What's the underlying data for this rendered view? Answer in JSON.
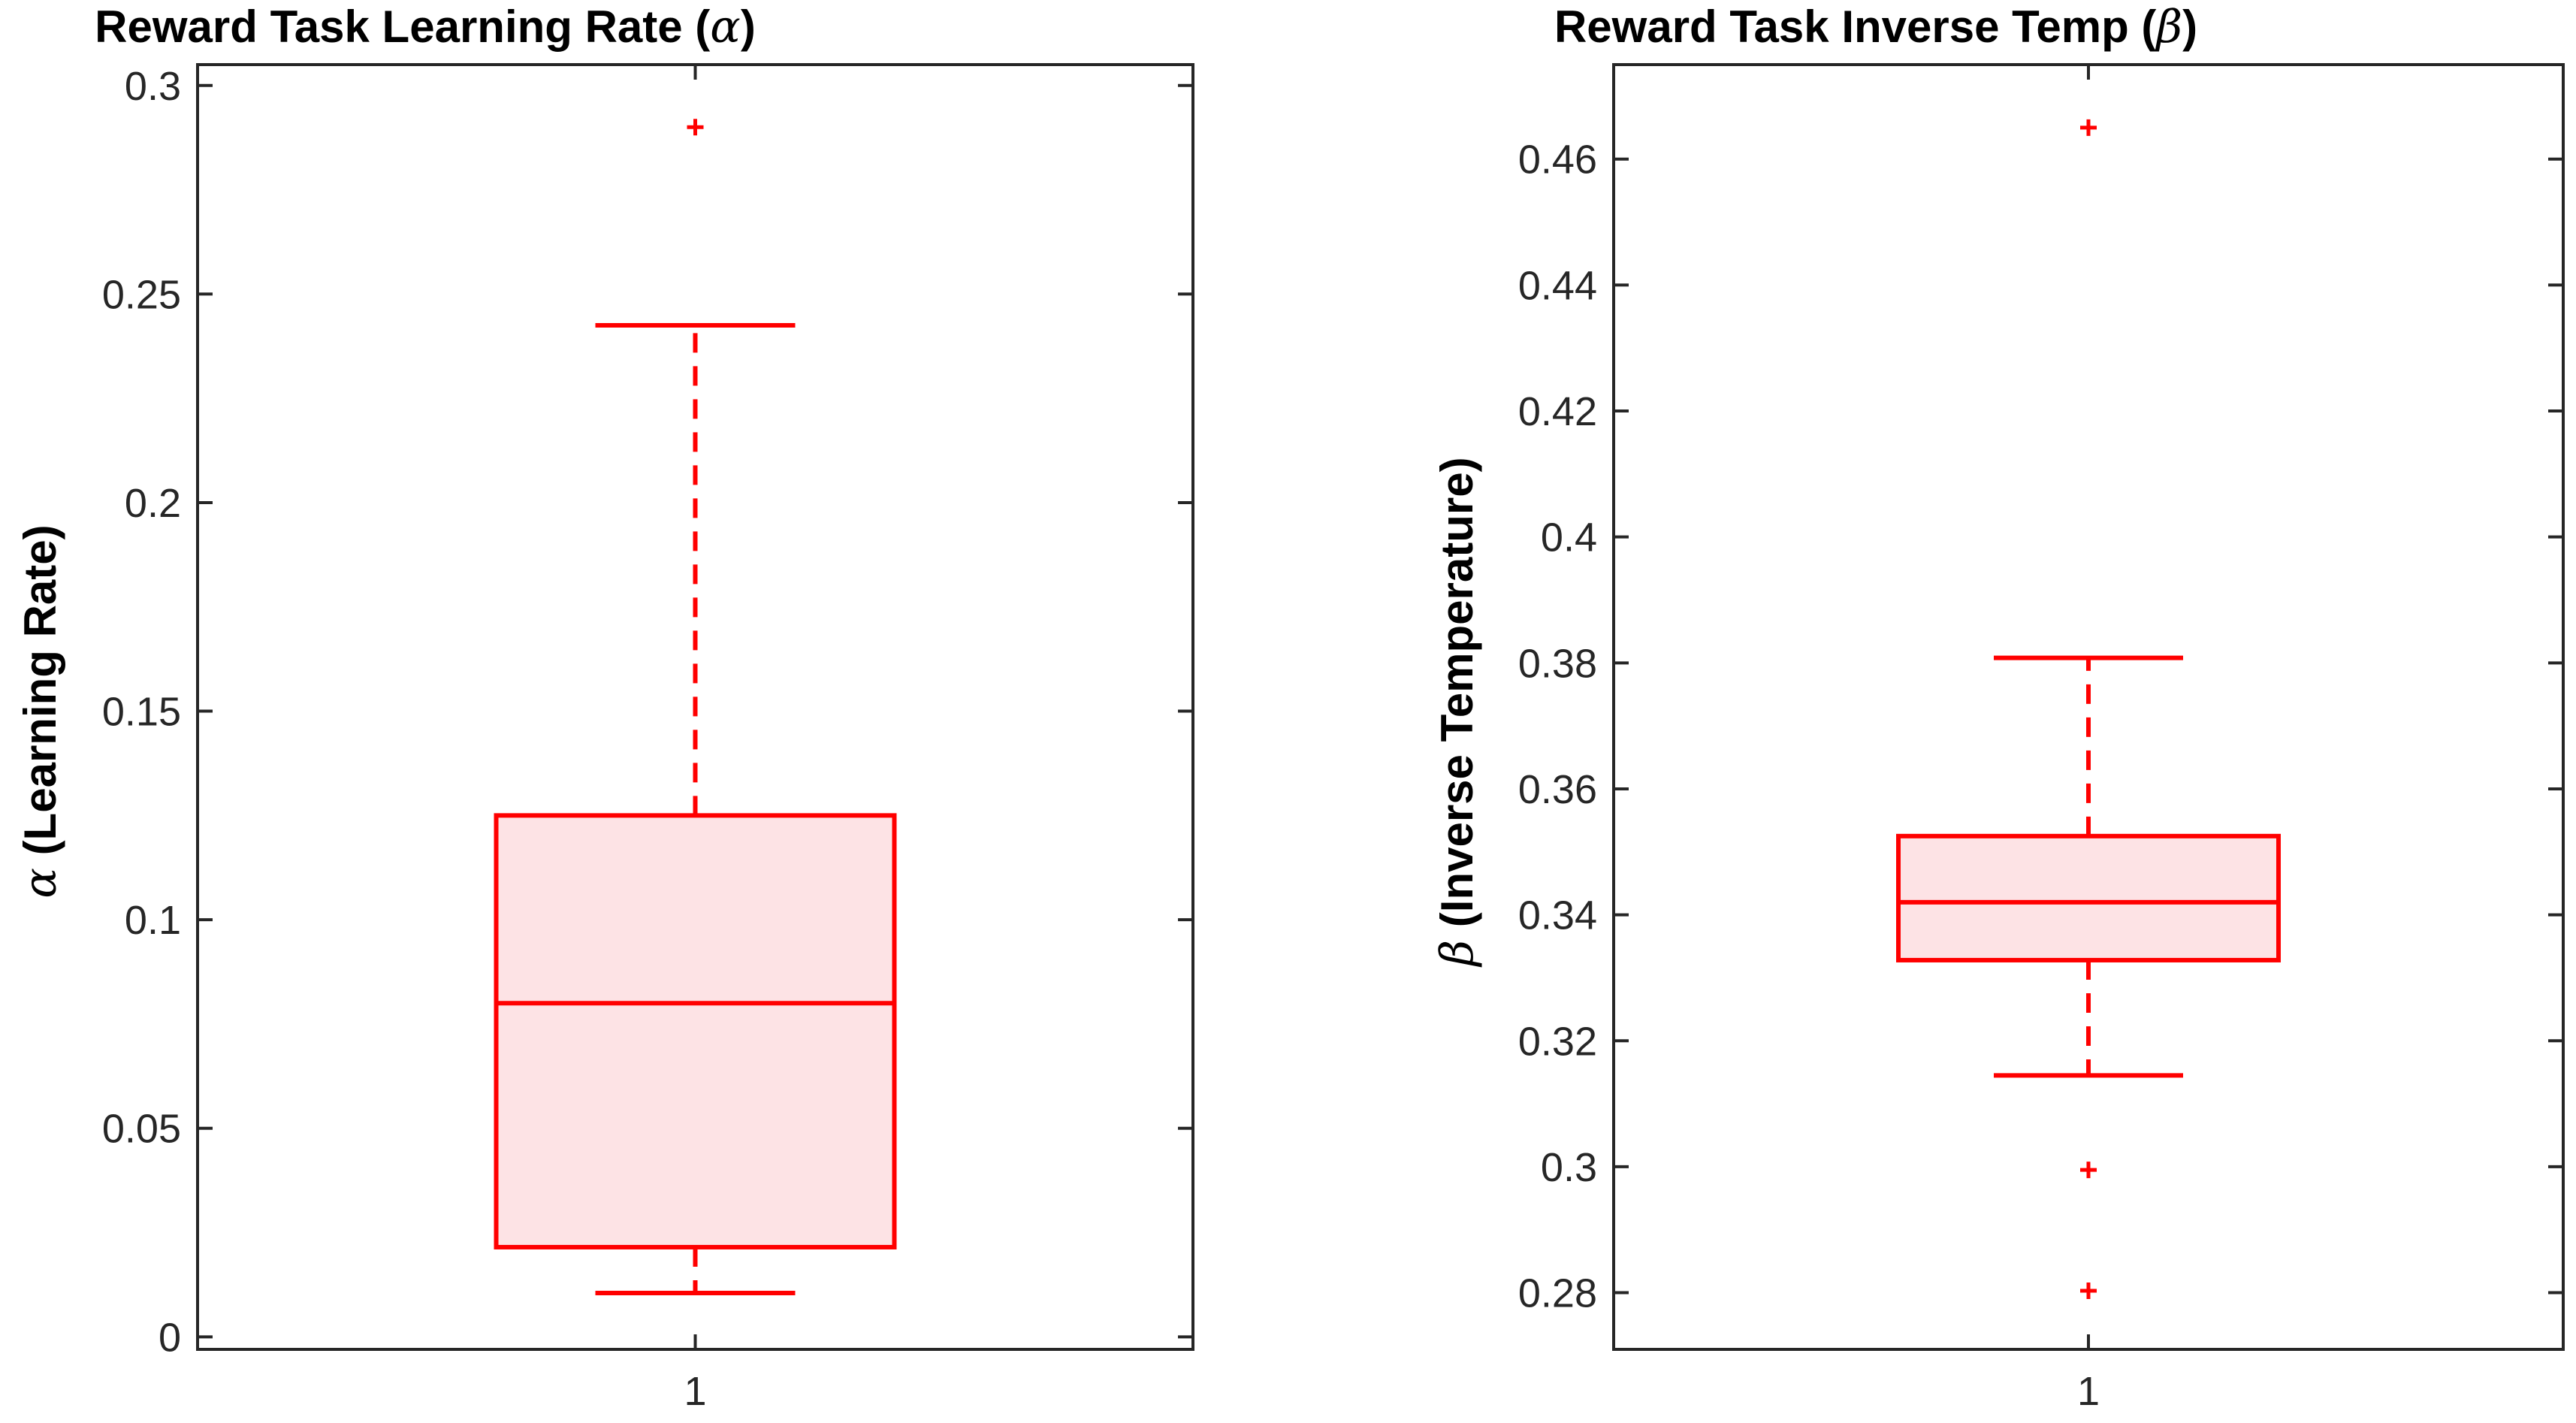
{
  "chart_data": [
    {
      "type": "box",
      "title_prefix": "Reward Task Learning Rate (",
      "title_symbol": "α",
      "title_suffix": ")",
      "ylabel_symbol": "α",
      "ylabel_text": " (Learning Rate)",
      "ylim": [
        -0.003,
        0.305
      ],
      "yticks": [
        0,
        0.05,
        0.1,
        0.15,
        0.2,
        0.25,
        0.3
      ],
      "ytick_labels": [
        "0",
        "0.05",
        "0.1",
        "0.15",
        "0.2",
        "0.25",
        "0.3"
      ],
      "categories": [
        "1"
      ],
      "box": {
        "whisker_low": 0.0105,
        "q1": 0.0215,
        "median": 0.08,
        "q3": 0.125,
        "whisker_high": 0.2425
      },
      "outliers": [
        0.29
      ]
    },
    {
      "type": "box",
      "title_prefix": "Reward Task Inverse Temp (",
      "title_symbol": "β",
      "title_suffix": ")",
      "ylabel_symbol": "β",
      "ylabel_text": " (Inverse Temperature)",
      "ylim": [
        0.271,
        0.475
      ],
      "yticks": [
        0.28,
        0.3,
        0.32,
        0.34,
        0.36,
        0.38,
        0.4,
        0.42,
        0.44,
        0.46
      ],
      "ytick_labels": [
        "0.28",
        "0.3",
        "0.32",
        "0.34",
        "0.36",
        "0.38",
        "0.4",
        "0.42",
        "0.44",
        "0.46"
      ],
      "categories": [
        "1"
      ],
      "box": {
        "whisker_low": 0.3145,
        "q1": 0.3328,
        "median": 0.342,
        "q3": 0.3525,
        "whisker_high": 0.3808
      },
      "outliers": [
        0.465,
        0.2995,
        0.2803
      ]
    }
  ],
  "colors": {
    "box_edge": "#ff0000",
    "box_fill": "#fde3e5",
    "axes": "#262626",
    "text": "#000000"
  }
}
